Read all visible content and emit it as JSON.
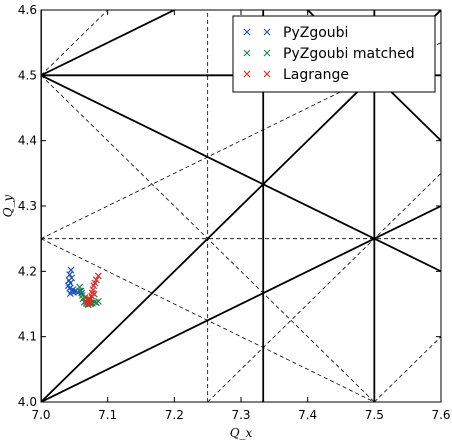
{
  "chart_data": {
    "type": "scatter",
    "title": "",
    "xlabel": "Q_x",
    "ylabel": "Q_y",
    "xlim": [
      7.0,
      7.6
    ],
    "ylim": [
      4.0,
      4.6
    ],
    "xticks": [
      "7.0",
      "7.1",
      "7.2",
      "7.3",
      "7.4",
      "7.5",
      "7.6"
    ],
    "yticks": [
      "4.0",
      "4.1",
      "4.2",
      "4.3",
      "4.4",
      "4.5",
      "4.6"
    ],
    "grid": false,
    "legend_position": "top-right",
    "marker": "×",
    "series": [
      {
        "name": "PyZgoubi",
        "color": "#1f4fbf",
        "points": [
          [
            7.045,
            4.202
          ],
          [
            7.043,
            4.195
          ],
          [
            7.046,
            4.19
          ],
          [
            7.042,
            4.186
          ],
          [
            7.044,
            4.182
          ],
          [
            7.041,
            4.178
          ],
          [
            7.043,
            4.174
          ],
          [
            7.046,
            4.17
          ],
          [
            7.049,
            4.168
          ],
          [
            7.052,
            4.17
          ],
          [
            7.055,
            4.168
          ],
          [
            7.058,
            4.17
          ],
          [
            7.061,
            4.167
          ],
          [
            7.044,
            4.166
          ],
          [
            7.048,
            4.172
          ]
        ]
      },
      {
        "name": "PyZgoubi matched",
        "color": "#1a8a4a",
        "points": [
          [
            7.058,
            4.176
          ],
          [
            7.06,
            4.17
          ],
          [
            7.062,
            4.163
          ],
          [
            7.063,
            4.158
          ],
          [
            7.065,
            4.153
          ],
          [
            7.068,
            4.151
          ],
          [
            7.071,
            4.149
          ],
          [
            7.074,
            4.15
          ],
          [
            7.077,
            4.151
          ],
          [
            7.08,
            4.153
          ],
          [
            7.083,
            4.152
          ],
          [
            7.086,
            4.154
          ],
          [
            7.072,
            4.156
          ],
          [
            7.066,
            4.16
          ]
        ]
      },
      {
        "name": "Lagrange",
        "color": "#e02a2a",
        "points": [
          [
            7.086,
            4.193
          ],
          [
            7.083,
            4.187
          ],
          [
            7.081,
            4.182
          ],
          [
            7.079,
            4.178
          ],
          [
            7.078,
            4.172
          ],
          [
            7.077,
            4.167
          ],
          [
            7.076,
            4.162
          ],
          [
            7.074,
            4.157
          ],
          [
            7.072,
            4.153
          ],
          [
            7.07,
            4.15
          ],
          [
            7.068,
            4.154
          ],
          [
            7.075,
            4.151
          ],
          [
            7.08,
            4.165
          ],
          [
            7.071,
            4.158
          ]
        ]
      }
    ],
    "resonance_lines": {
      "solid": [
        [
          [
            7.0,
            4.0
          ],
          [
            7.6,
            4.6
          ]
        ],
        [
          [
            7.0,
            4.5
          ],
          [
            7.6,
            4.5
          ]
        ],
        [
          [
            7.0,
            4.5
          ],
          [
            7.6,
            4.2
          ]
        ],
        [
          [
            7.0,
            4.5
          ],
          [
            7.2,
            4.6
          ]
        ],
        [
          [
            7.0,
            4.0
          ],
          [
            7.0,
            4.6
          ]
        ],
        [
          [
            7.3333,
            4.0
          ],
          [
            7.3333,
            4.6
          ]
        ],
        [
          [
            7.5,
            4.0
          ],
          [
            7.5,
            4.6
          ]
        ],
        [
          [
            7.0,
            4.0
          ],
          [
            7.6,
            4.3
          ]
        ],
        [
          [
            7.25,
            4.0
          ],
          [
            7.25,
            4.0
          ]
        ],
        [
          [
            7.4,
            4.6
          ],
          [
            7.6,
            4.4
          ]
        ],
        [
          [
            7.5,
            4.5
          ],
          [
            7.6,
            4.6
          ]
        ]
      ],
      "dashed": [
        [
          [
            7.25,
            4.0
          ],
          [
            7.25,
            4.6
          ]
        ],
        [
          [
            7.0,
            4.25
          ],
          [
            7.6,
            4.25
          ]
        ],
        [
          [
            7.0,
            4.5
          ],
          [
            7.5,
            4.0
          ]
        ],
        [
          [
            7.0,
            4.5
          ],
          [
            7.1,
            4.6
          ]
        ],
        [
          [
            7.0,
            4.0
          ],
          [
            7.5,
            4.5
          ]
        ],
        [
          [
            7.25,
            4.0
          ],
          [
            7.6,
            4.35
          ]
        ],
        [
          [
            7.0,
            4.25
          ],
          [
            7.6,
            4.55
          ]
        ],
        [
          [
            7.0,
            4.25
          ],
          [
            7.5,
            4.0
          ]
        ],
        [
          [
            7.5,
            4.0
          ],
          [
            7.6,
            4.1
          ]
        ],
        [
          [
            7.5,
            4.25
          ],
          [
            7.6,
            4.3
          ]
        ]
      ]
    }
  }
}
